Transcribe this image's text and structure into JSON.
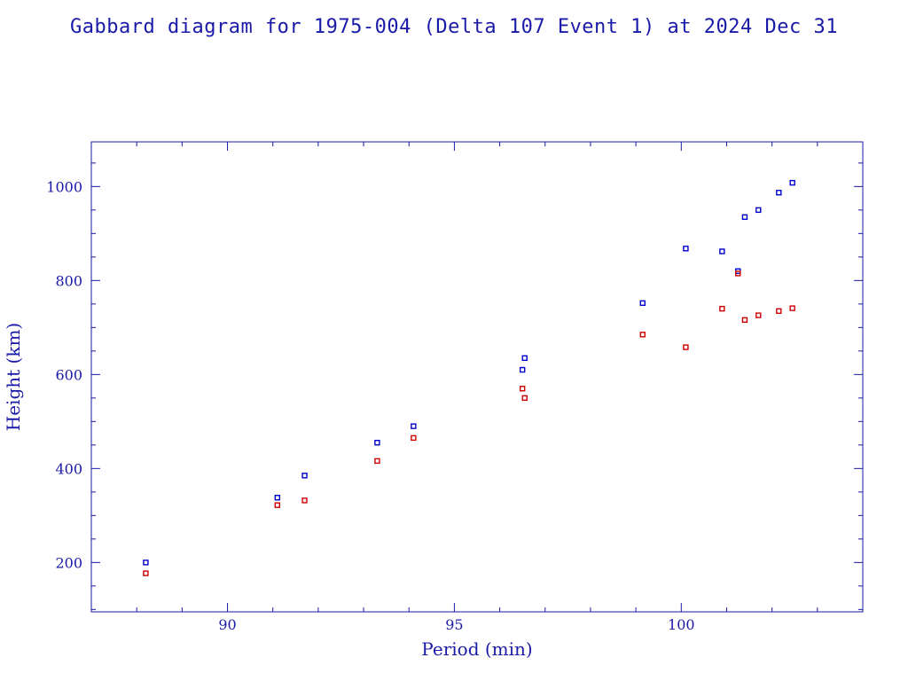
{
  "chart_data": {
    "type": "scatter",
    "title": "Gabbard diagram for 1975-004 (Delta 107 Event 1) at 2024 Dec 31",
    "xlabel": "Period (min)",
    "ylabel": "Height (km)",
    "xlim": [
      87,
      104
    ],
    "ylim": [
      95,
      1095
    ],
    "x_ticks": [
      90,
      95,
      100
    ],
    "y_ticks": [
      200,
      400,
      600,
      800,
      1000
    ],
    "x_tick_labels": [
      "90",
      "95",
      "100"
    ],
    "y_tick_labels": [
      "200",
      "400",
      "600",
      "800",
      "1000"
    ],
    "grid": false,
    "legend": "none",
    "colors": {
      "frame": "#1a1aa8",
      "series_blue": "#0000cc",
      "series_red": "#cc0000"
    },
    "series": [
      {
        "color": "#0000cc",
        "points": [
          [
            88.2,
            200
          ],
          [
            91.1,
            338
          ],
          [
            91.7,
            385
          ],
          [
            93.3,
            455
          ],
          [
            94.1,
            490
          ],
          [
            96.5,
            610
          ],
          [
            96.55,
            635
          ],
          [
            99.15,
            752
          ],
          [
            100.1,
            868
          ],
          [
            100.9,
            862
          ],
          [
            101.25,
            820
          ],
          [
            101.4,
            935
          ],
          [
            101.7,
            950
          ],
          [
            102.15,
            987
          ],
          [
            102.45,
            1008
          ]
        ]
      },
      {
        "color": "#cc0000",
        "points": [
          [
            88.2,
            177
          ],
          [
            91.1,
            322
          ],
          [
            91.7,
            332
          ],
          [
            93.3,
            416
          ],
          [
            94.1,
            465
          ],
          [
            96.5,
            570
          ],
          [
            96.55,
            550
          ],
          [
            99.15,
            685
          ],
          [
            100.1,
            658
          ],
          [
            100.9,
            740
          ],
          [
            101.25,
            815
          ],
          [
            101.4,
            716
          ],
          [
            101.7,
            726
          ],
          [
            102.15,
            735
          ],
          [
            102.45,
            741
          ]
        ]
      }
    ]
  }
}
